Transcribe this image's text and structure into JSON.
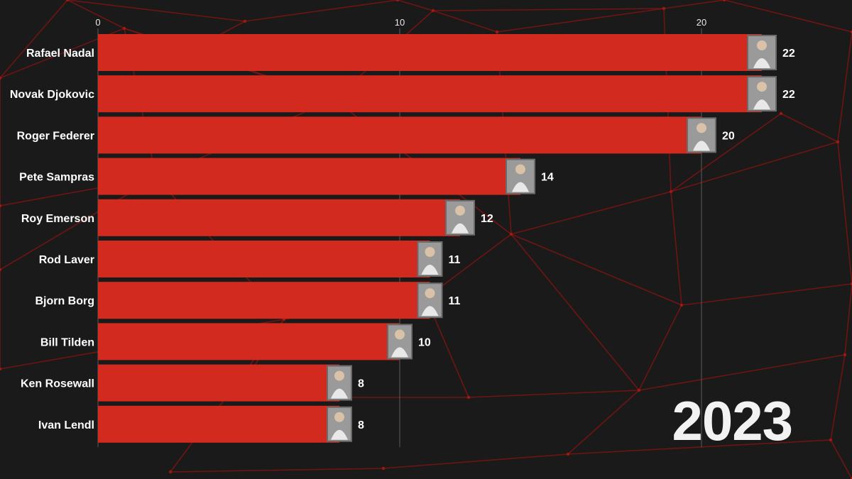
{
  "chart_data": {
    "type": "bar",
    "orientation": "horizontal",
    "categories": [
      "Rafael Nadal",
      "Novak Djokovic",
      "Roger Federer",
      "Pete Sampras",
      "Roy Emerson",
      "Rod Laver",
      "Bjorn Borg",
      "Bill Tilden",
      "Ken Rosewall",
      "Ivan Lendl"
    ],
    "values": [
      22,
      22,
      20,
      14,
      12,
      11,
      11,
      10,
      8,
      8
    ],
    "x_ticks": [
      0,
      10,
      20
    ],
    "xlim": [
      0,
      24.5
    ],
    "title": "",
    "xlabel": "",
    "ylabel": "",
    "grid": true,
    "bar_color": "#d22a1e",
    "year": "2023"
  },
  "colors": {
    "background": "#1a1a1a",
    "network_lines": "#8a1410",
    "text": "#ffffff"
  },
  "icons": [
    "player-photo-icon"
  ]
}
